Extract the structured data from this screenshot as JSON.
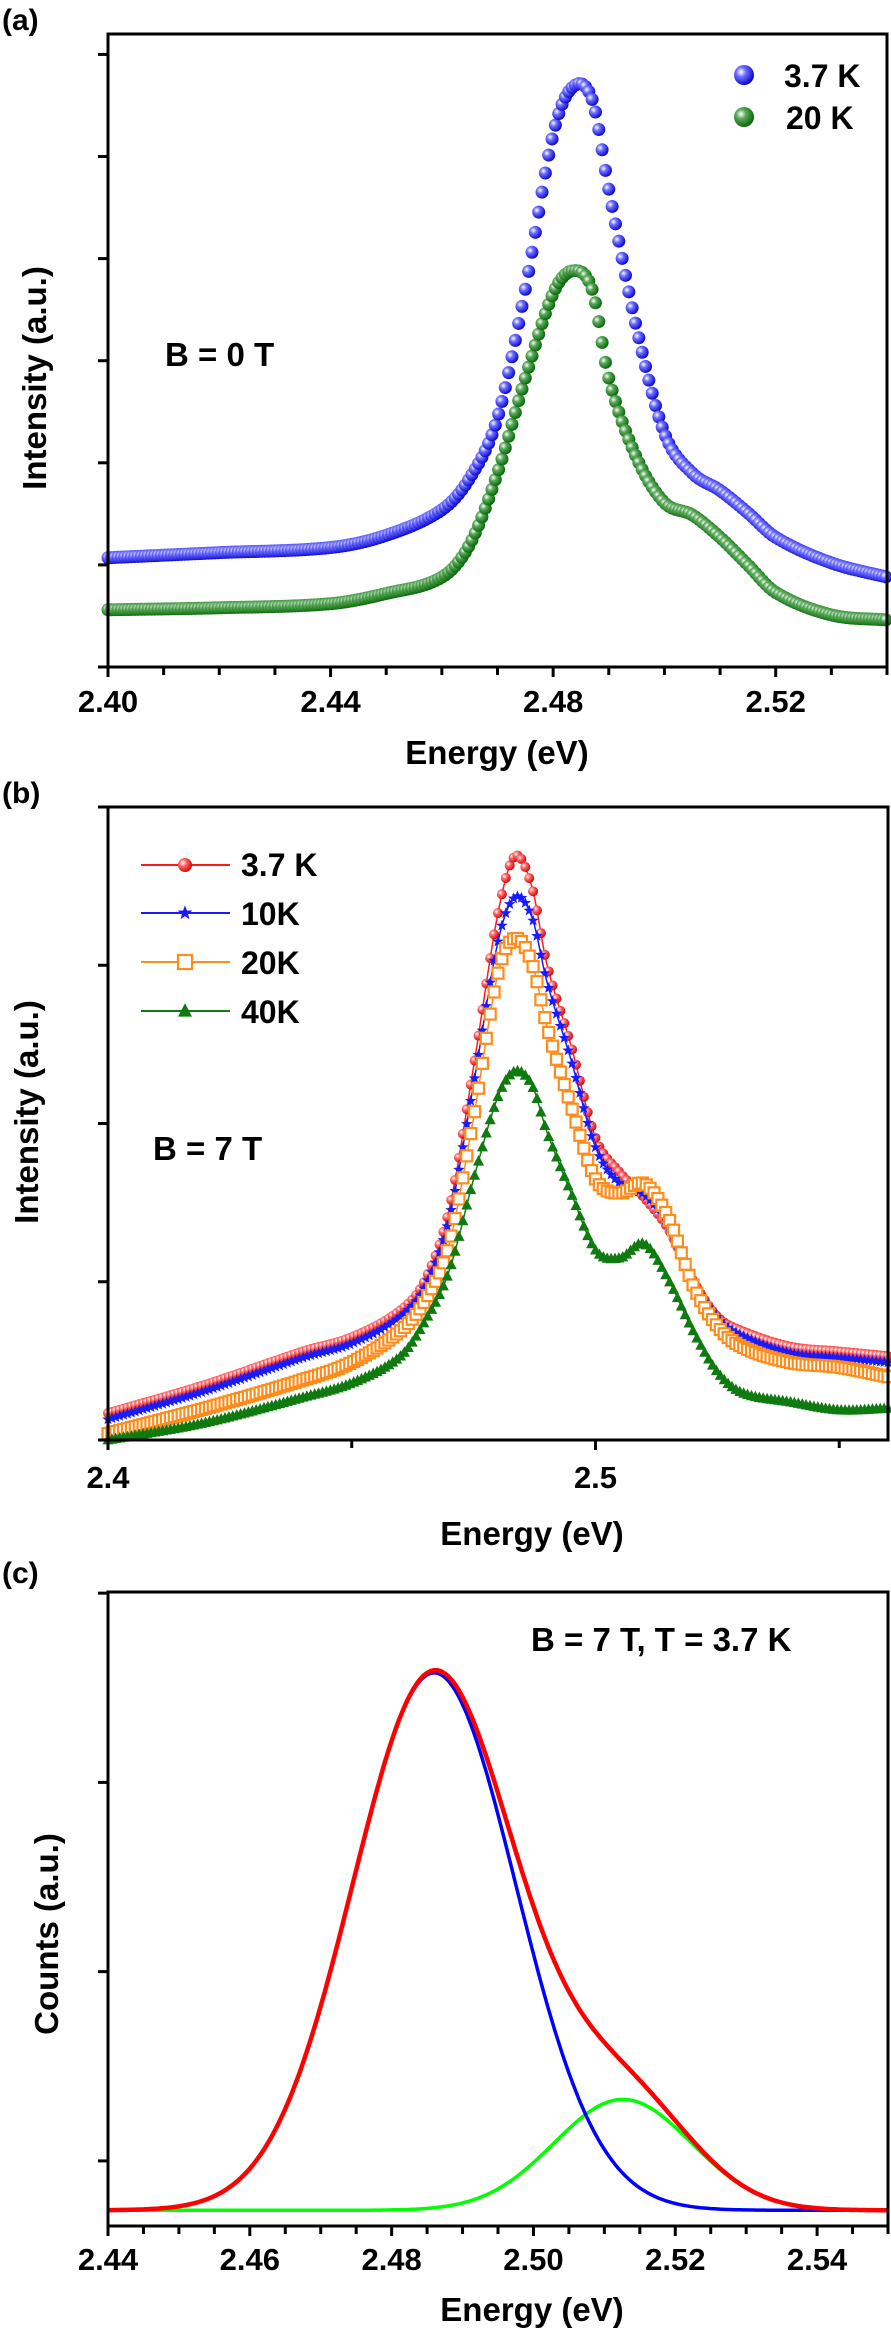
{
  "chart_data": [
    {
      "panel_label": "(a)",
      "type": "scatter",
      "xlabel": "Energy (eV)",
      "ylabel": "Intensity (a.u.)",
      "annotation": "B = 0 T",
      "xlim": [
        2.4,
        2.54
      ],
      "xticks": [
        "2.40",
        "2.44",
        "2.48",
        "2.52"
      ],
      "ylim": [
        0,
        6.2
      ],
      "yticks_labeled": false,
      "legend_position": "top-right",
      "grid": false,
      "series": [
        {
          "name": "3.7 K",
          "color": "#1a1aff",
          "marker": "sphere",
          "x": [
            2.4,
            2.42,
            2.44,
            2.45,
            2.46,
            2.465,
            2.47,
            2.475,
            2.48,
            2.4835,
            2.487,
            2.49,
            2.495,
            2.5,
            2.505,
            2.51,
            2.515,
            2.52,
            2.53,
            2.54
          ],
          "y": [
            1.07,
            1.12,
            1.17,
            1.29,
            1.54,
            1.85,
            2.44,
            3.7,
            5.22,
            5.68,
            5.56,
            4.68,
            3.32,
            2.29,
            1.9,
            1.73,
            1.51,
            1.27,
            1.02,
            0.88
          ]
        },
        {
          "name": "20 K",
          "color": "#0f7a0f",
          "marker": "sphere",
          "x": [
            2.4,
            2.42,
            2.44,
            2.45,
            2.46,
            2.465,
            2.47,
            2.475,
            2.48,
            2.4835,
            2.487,
            2.49,
            2.495,
            2.5,
            2.505,
            2.51,
            2.515,
            2.52,
            2.53,
            2.54
          ],
          "y": [
            0.56,
            0.58,
            0.62,
            0.72,
            0.88,
            1.2,
            1.9,
            2.83,
            3.66,
            3.88,
            3.7,
            2.83,
            2.05,
            1.61,
            1.49,
            1.27,
            1.0,
            0.73,
            0.51,
            0.46
          ]
        }
      ]
    },
    {
      "panel_label": "(b)",
      "type": "scatter",
      "xlabel": "Energy (eV)",
      "ylabel": "Intensity (a.u.)",
      "annotation": "B = 7 T",
      "xlim": [
        2.4,
        2.56
      ],
      "xticks": [
        "2.4",
        "2.5"
      ],
      "ylim": [
        0,
        4
      ],
      "yticks_labeled": false,
      "legend_position": "top-left",
      "grid": false,
      "series": [
        {
          "name": "3.7 K",
          "color": "#ff1a1a",
          "marker": "circle",
          "x": [
            2.4,
            2.42,
            2.44,
            2.45,
            2.46,
            2.465,
            2.47,
            2.475,
            2.48,
            2.4835,
            2.487,
            2.49,
            2.495,
            2.5,
            2.505,
            2.51,
            2.515,
            2.52,
            2.525,
            2.53,
            2.54,
            2.55,
            2.56
          ],
          "y": [
            0.17,
            0.35,
            0.56,
            0.65,
            0.82,
            1.01,
            1.46,
            2.36,
            3.33,
            3.69,
            3.49,
            3.01,
            2.49,
            1.91,
            1.69,
            1.53,
            1.33,
            1.01,
            0.78,
            0.69,
            0.59,
            0.56,
            0.53
          ]
        },
        {
          "name": "10K",
          "color": "#1a1aff",
          "marker": "star",
          "x": [
            2.4,
            2.42,
            2.44,
            2.45,
            2.46,
            2.465,
            2.47,
            2.475,
            2.48,
            2.4835,
            2.487,
            2.49,
            2.495,
            2.5,
            2.505,
            2.51,
            2.515,
            2.52,
            2.525,
            2.53,
            2.54,
            2.55,
            2.56
          ],
          "y": [
            0.13,
            0.31,
            0.52,
            0.61,
            0.78,
            0.97,
            1.4,
            2.25,
            3.15,
            3.43,
            3.3,
            2.9,
            2.4,
            1.85,
            1.62,
            1.55,
            1.36,
            1.0,
            0.77,
            0.66,
            0.55,
            0.52,
            0.49
          ]
        },
        {
          "name": "20K",
          "color": "#ff8c1a",
          "marker": "open-square",
          "x": [
            2.4,
            2.42,
            2.44,
            2.45,
            2.46,
            2.465,
            2.47,
            2.475,
            2.48,
            2.4835,
            2.487,
            2.49,
            2.495,
            2.5,
            2.505,
            2.51,
            2.515,
            2.52,
            2.525,
            2.53,
            2.54,
            2.55,
            2.56
          ],
          "y": [
            0.04,
            0.2,
            0.38,
            0.49,
            0.69,
            0.88,
            1.24,
            2.04,
            2.95,
            3.17,
            3.01,
            2.62,
            2.11,
            1.65,
            1.56,
            1.62,
            1.4,
            0.98,
            0.72,
            0.59,
            0.49,
            0.46,
            0.4
          ]
        },
        {
          "name": "40K",
          "color": "#0f7a0f",
          "marker": "triangle",
          "x": [
            2.4,
            2.42,
            2.44,
            2.45,
            2.46,
            2.465,
            2.47,
            2.475,
            2.48,
            2.4835,
            2.487,
            2.49,
            2.495,
            2.5,
            2.505,
            2.51,
            2.515,
            2.52,
            2.525,
            2.53,
            2.54,
            2.55,
            2.56
          ],
          "y": [
            0.0,
            0.11,
            0.27,
            0.36,
            0.53,
            0.75,
            1.07,
            1.65,
            2.17,
            2.33,
            2.24,
            1.95,
            1.56,
            1.2,
            1.15,
            1.24,
            1.01,
            0.69,
            0.43,
            0.3,
            0.24,
            0.19,
            0.2
          ]
        }
      ]
    },
    {
      "panel_label": "(c)",
      "type": "line",
      "xlabel": "Energy (eV)",
      "ylabel": "Counts (a.u.)",
      "annotation": "B = 7 T, T = 3.7 K",
      "xlim": [
        2.44,
        2.55
      ],
      "xticks": [
        "2.44",
        "2.46",
        "2.48",
        "2.50",
        "2.52",
        "2.54"
      ],
      "ylim": [
        0,
        3.35
      ],
      "yticks_labeled": false,
      "grid": false,
      "baseline": 0.083,
      "series": [
        {
          "color": "#0000ff",
          "shape": "gaussian",
          "center": 2.486,
          "amplitude": 2.84,
          "sigma": 0.0115
        },
        {
          "color": "#00ff00",
          "shape": "gaussian",
          "center": 2.5126,
          "amplitude": 0.586,
          "sigma": 0.0097
        },
        {
          "color": "#ff0000",
          "shape": "sum"
        }
      ]
    }
  ]
}
